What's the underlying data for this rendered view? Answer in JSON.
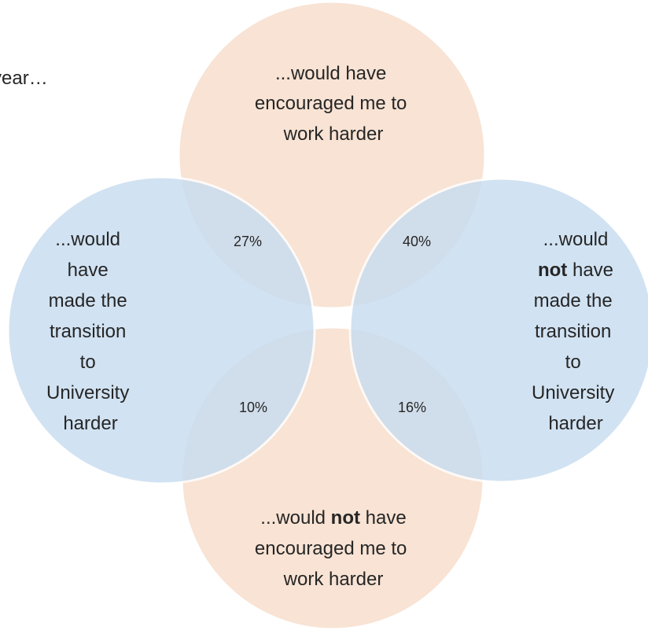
{
  "intro": {
    "text": "year…"
  },
  "colors": {
    "orange_circle": "#f8e0d0",
    "blue_circle": "#c8dcf0",
    "overlap": "#d8d8d8",
    "circle_stroke": "#ffffff",
    "text": "#262626"
  },
  "circles": {
    "top": {
      "lines": [
        "...would have",
        "encouraged me to",
        "work harder"
      ]
    },
    "left": {
      "lines": [
        "...would",
        "have",
        "made the",
        "transition",
        "to",
        "University",
        "harder"
      ]
    },
    "right": {
      "line1": "...would",
      "line2_bold": "not",
      "line2_rest": " have",
      "lines_after": [
        "made the",
        "transition",
        "to",
        "University",
        "harder"
      ]
    },
    "bottom": {
      "line1_prefix": "...would ",
      "line1_bold": "not",
      "line1_suffix": " have",
      "lines_after": [
        "encouraged me to",
        "work harder"
      ]
    }
  },
  "overlaps": {
    "top_left": "27%",
    "top_right": "40%",
    "bottom_left": "10%",
    "bottom_right": "16%"
  }
}
